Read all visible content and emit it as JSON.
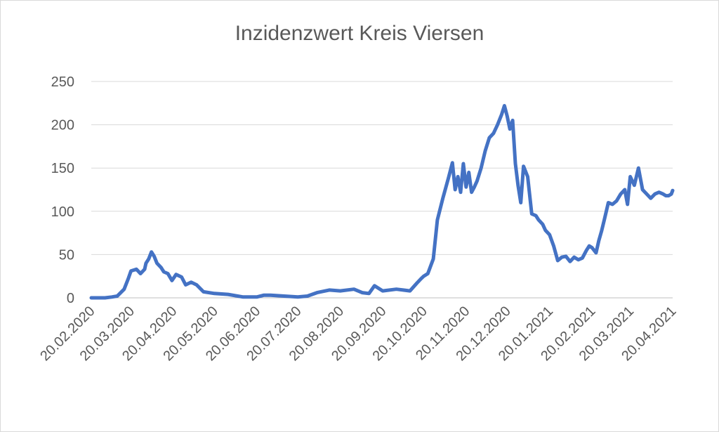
{
  "chart_data": {
    "type": "line",
    "title": "Inzidenzwert Kreis Viersen",
    "xlabel": "",
    "ylabel": "",
    "ylim": [
      0,
      250
    ],
    "y_ticks": [
      "0",
      "50",
      "100",
      "150",
      "200",
      "250"
    ],
    "x_tick_labels": [
      "20.02.2020",
      "20.03.2020",
      "20.04.2020",
      "20.05.2020",
      "20.06.2020",
      "20.07.2020",
      "20.08.2020",
      "20.09.2020",
      "20.10.2020",
      "20.11.2020",
      "20.12.2020",
      "20.01.2021",
      "20.02.2021",
      "20.03.2021",
      "20.04.2021"
    ],
    "grid": true,
    "legend": "none",
    "color": "#4472C4",
    "series": [
      {
        "x": [
          "20.02.2020",
          "01.03.2020",
          "06.03.2020",
          "10.03.2020",
          "15.03.2020",
          "18.03.2020",
          "20.03.2020",
          "24.03.2020",
          "27.03.2020",
          "30.03.2020",
          "31.03.2020",
          "02.04.2020",
          "04.04.2020",
          "06.04.2020",
          "08.04.2020",
          "11.04.2020",
          "13.04.2020",
          "16.04.2020",
          "19.04.2020",
          "22.04.2020",
          "26.04.2020",
          "29.04.2020",
          "03.05.2020",
          "07.05.2020",
          "12.05.2020",
          "20.05.2020",
          "30.05.2020",
          "10.06.2020",
          "20.06.2020",
          "25.06.2020",
          "30.06.2020",
          "10.07.2020",
          "20.07.2020",
          "27.07.2020",
          "03.08.2020",
          "12.08.2020",
          "20.08.2020",
          "30.08.2020",
          "05.09.2020",
          "10.09.2020",
          "14.09.2020",
          "20.09.2020",
          "30.09.2020",
          "05.10.2020",
          "10.10.2020",
          "15.10.2020",
          "18.10.2020",
          "20.10.2020",
          "23.10.2020",
          "27.10.2020",
          "30.10.2020",
          "03.11.2020",
          "07.11.2020",
          "10.11.2020",
          "12.11.2020",
          "14.11.2020",
          "16.11.2020",
          "18.11.2020",
          "20.11.2020",
          "22.11.2020",
          "24.11.2020",
          "26.11.2020",
          "28.11.2020",
          "01.12.2020",
          "04.12.2020",
          "07.12.2020",
          "10.12.2020",
          "13.12.2020",
          "16.12.2020",
          "18.12.2020",
          "20.12.2020",
          "22.12.2020",
          "24.12.2020",
          "26.12.2020",
          "28.12.2020",
          "30.12.2020",
          "01.01.2021",
          "04.01.2021",
          "07.01.2021",
          "10.01.2021",
          "12.01.2021",
          "15.01.2021",
          "17.01.2021",
          "20.01.2021",
          "23.01.2021",
          "26.01.2021",
          "29.01.2021",
          "01.02.2021",
          "04.02.2021",
          "07.02.2021",
          "10.02.2021",
          "13.02.2021",
          "16.02.2021",
          "18.02.2021",
          "20.02.2021",
          "23.02.2021",
          "25.02.2021",
          "27.02.2021",
          "01.03.2021",
          "04.03.2021",
          "07.03.2021",
          "10.03.2021",
          "13.03.2021",
          "16.03.2021",
          "18.03.2021",
          "20.03.2021",
          "23.03.2021",
          "26.03.2021",
          "29.03.2021",
          "01.04.2021",
          "04.04.2021",
          "07.04.2021",
          "10.04.2021",
          "13.04.2021",
          "15.04.2021",
          "17.04.2021",
          "19.04.2021",
          "20.04.2021"
        ],
        "y": [
          0,
          0,
          1,
          2,
          10,
          22,
          31,
          33,
          28,
          33,
          40,
          45,
          53,
          48,
          40,
          35,
          30,
          28,
          20,
          27,
          24,
          15,
          18,
          15,
          7,
          5,
          4,
          1,
          1,
          3,
          3,
          2,
          1,
          2,
          6,
          9,
          8,
          10,
          6,
          5,
          14,
          8,
          10,
          9,
          8,
          17,
          22,
          25,
          28,
          45,
          90,
          115,
          138,
          156,
          125,
          140,
          122,
          155,
          128,
          145,
          122,
          128,
          135,
          150,
          170,
          185,
          190,
          200,
          212,
          222,
          210,
          195,
          205,
          155,
          130,
          110,
          152,
          140,
          97,
          95,
          90,
          85,
          78,
          73,
          60,
          43,
          47,
          48,
          42,
          47,
          44,
          46,
          55,
          60,
          58,
          52,
          66,
          77,
          90,
          110,
          108,
          112,
          120,
          125,
          108,
          140,
          130,
          150,
          125,
          120,
          115,
          120,
          122,
          120,
          118,
          118,
          120,
          124
        ]
      }
    ]
  }
}
